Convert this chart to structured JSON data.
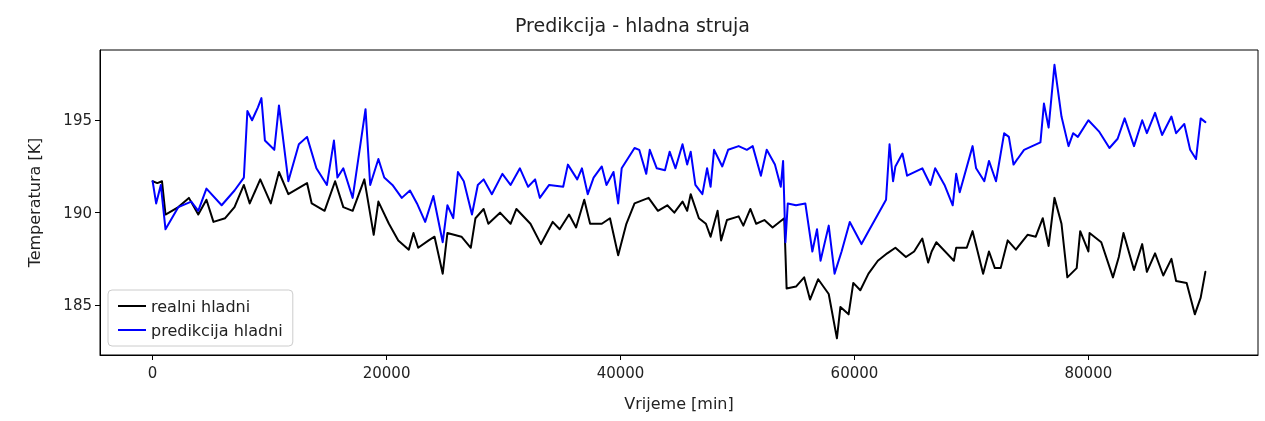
{
  "chart_data": {
    "type": "line",
    "title": "Predikcija - hladna struja",
    "xlabel": "Vrijeme [min]",
    "ylabel": "Temperatura [K]",
    "xlim": [
      -4500,
      94500
    ],
    "xticks": [
      0,
      20000,
      40000,
      60000,
      80000
    ],
    "ylim": [
      182.3,
      198.8
    ],
    "yticks": [
      185,
      190,
      195
    ],
    "grid": false,
    "legend": "bottom left",
    "marker": "none",
    "line_style": "solid",
    "series": [
      {
        "name": "realni hladni",
        "color": "#000000",
        "x": [
          0,
          400,
          800,
          1100,
          2200,
          3100,
          3900,
          4600,
          5200,
          6200,
          7000,
          7800,
          8300,
          9200,
          10100,
          10800,
          11600,
          13200,
          13600,
          14700,
          15600,
          16300,
          17100,
          18100,
          18900,
          19300,
          20200,
          21000,
          21900,
          22300,
          22700,
          23600,
          24100,
          24800,
          25200,
          26400,
          27200,
          27600,
          28300,
          28700,
          29700,
          30600,
          31100,
          32300,
          33200,
          34200,
          34800,
          35600,
          36200,
          36900,
          37400,
          38400,
          39100,
          39800,
          40500,
          41200,
          42400,
          43200,
          44000,
          44600,
          45300,
          45700,
          46000,
          46700,
          47300,
          47700,
          48300,
          48600,
          49100,
          50100,
          50500,
          51100,
          51600,
          52300,
          53000,
          54000,
          54200,
          55000,
          55700,
          56200,
          56900,
          57800,
          58500,
          58800,
          59500,
          59900,
          60500,
          61200,
          62000,
          62800,
          63500,
          64400,
          65100,
          65800,
          66300,
          66600,
          67000,
          68500,
          68700,
          69600,
          70100,
          71000,
          71500,
          72000,
          72500,
          73100,
          73800,
          74800,
          75500,
          76100,
          76600,
          77100,
          77700,
          78200,
          79000,
          79300,
          80000,
          80100,
          81100,
          82100,
          82600,
          83000,
          83900,
          84600,
          85000,
          85700,
          86400,
          87100,
          87500,
          88400,
          89100,
          89600,
          90000
        ],
        "values": [
          191.7,
          191.6,
          191.7,
          189.9,
          190.3,
          190.8,
          189.9,
          190.7,
          189.5,
          189.7,
          190.3,
          191.5,
          190.5,
          191.8,
          190.5,
          192.2,
          191.0,
          191.6,
          190.5,
          190.1,
          191.7,
          190.3,
          190.1,
          191.8,
          188.8,
          190.6,
          189.4,
          188.5,
          188.0,
          188.9,
          188.1,
          188.5,
          188.7,
          186.7,
          188.9,
          188.7,
          188.1,
          189.7,
          190.2,
          189.4,
          190.0,
          189.4,
          190.2,
          189.4,
          188.3,
          189.5,
          189.1,
          189.9,
          189.2,
          190.7,
          189.4,
          189.4,
          189.7,
          187.7,
          189.4,
          190.5,
          190.8,
          190.1,
          190.4,
          190.0,
          190.6,
          190.1,
          191.0,
          189.7,
          189.4,
          188.7,
          190.1,
          188.5,
          189.6,
          189.8,
          189.3,
          190.2,
          189.4,
          189.6,
          189.2,
          189.7,
          185.9,
          186.0,
          186.5,
          185.3,
          186.4,
          185.6,
          183.2,
          184.9,
          184.5,
          186.2,
          185.8,
          186.7,
          187.4,
          187.8,
          188.1,
          187.6,
          187.9,
          188.6,
          187.3,
          187.9,
          188.4,
          187.4,
          188.1,
          188.1,
          189.0,
          186.7,
          187.9,
          187.0,
          187.0,
          188.5,
          188.0,
          188.8,
          188.7,
          189.7,
          188.2,
          190.8,
          189.4,
          186.5,
          187.0,
          189.0,
          187.9,
          188.9,
          188.4,
          186.5,
          187.6,
          188.9,
          186.9,
          188.3,
          186.8,
          187.8,
          186.6,
          187.5,
          186.3,
          186.2,
          184.5,
          185.4,
          186.8
        ]
      },
      {
        "name": "predikcija hladni",
        "color": "#0000ff",
        "x": [
          0,
          300,
          700,
          1100,
          2200,
          3300,
          3900,
          4600,
          5900,
          7000,
          7800,
          8100,
          8500,
          9000,
          9300,
          9600,
          10400,
          10800,
          11600,
          12500,
          13200,
          14000,
          14900,
          15500,
          15800,
          16300,
          17100,
          18200,
          18600,
          19300,
          19800,
          20500,
          21300,
          22000,
          22600,
          23300,
          24000,
          24800,
          25200,
          25700,
          26100,
          26600,
          27300,
          27800,
          28300,
          29000,
          29900,
          30600,
          31400,
          32100,
          32700,
          33100,
          33900,
          35100,
          35500,
          36300,
          36700,
          37200,
          37700,
          38400,
          38800,
          39400,
          39800,
          40100,
          41200,
          41600,
          42200,
          42500,
          43100,
          43800,
          44200,
          44700,
          45300,
          45700,
          46000,
          46400,
          47000,
          47400,
          47700,
          48000,
          48700,
          49200,
          50100,
          50800,
          51300,
          52000,
          52500,
          53200,
          53700,
          53900,
          54100,
          54300,
          55000,
          55800,
          56400,
          56800,
          57100,
          57800,
          58300,
          58900,
          59600,
          60600,
          61200,
          62000,
          62700,
          63000,
          63300,
          63500,
          64100,
          64500,
          65800,
          66500,
          66900,
          67700,
          68400,
          68700,
          69000,
          70100,
          70400,
          71100,
          71500,
          72100,
          72800,
          73200,
          73600,
          74500,
          75900,
          76200,
          76600,
          77100,
          77700,
          78300,
          78700,
          79100,
          80000,
          80900,
          81800,
          82500,
          83100,
          83900,
          84600,
          85000,
          85700,
          86300,
          87100,
          87500,
          88200,
          88700,
          89200,
          89600,
          90000
        ],
        "values": [
          191.7,
          190.5,
          191.5,
          189.1,
          190.3,
          190.6,
          190.1,
          191.3,
          190.4,
          191.2,
          191.9,
          195.5,
          195.0,
          195.7,
          196.2,
          193.9,
          193.4,
          195.8,
          191.7,
          193.7,
          194.1,
          192.4,
          191.5,
          193.9,
          191.9,
          192.4,
          190.8,
          195.6,
          191.5,
          192.9,
          191.9,
          191.5,
          190.8,
          191.2,
          190.5,
          189.5,
          190.9,
          188.4,
          190.4,
          189.7,
          192.2,
          191.7,
          189.9,
          191.5,
          191.8,
          191.0,
          192.1,
          191.5,
          192.4,
          191.4,
          191.8,
          190.8,
          191.5,
          191.4,
          192.6,
          191.8,
          192.4,
          191.0,
          191.9,
          192.5,
          191.5,
          192.2,
          190.5,
          192.4,
          193.5,
          193.4,
          192.1,
          193.4,
          192.4,
          192.3,
          193.3,
          192.4,
          193.7,
          192.6,
          193.3,
          191.5,
          191.0,
          192.4,
          191.4,
          193.4,
          192.5,
          193.4,
          193.6,
          193.4,
          193.6,
          192.0,
          193.4,
          192.6,
          191.4,
          192.8,
          188.4,
          190.5,
          190.4,
          190.5,
          187.9,
          189.1,
          187.4,
          189.3,
          186.7,
          187.9,
          189.5,
          188.3,
          189.0,
          189.9,
          190.7,
          193.7,
          191.7,
          192.5,
          193.2,
          192.0,
          192.4,
          191.5,
          192.4,
          191.5,
          190.4,
          192.1,
          191.1,
          193.6,
          192.4,
          191.7,
          192.8,
          191.7,
          194.3,
          194.1,
          192.6,
          193.4,
          193.8,
          195.9,
          194.6,
          198.0,
          195.2,
          193.6,
          194.3,
          194.1,
          195.0,
          194.4,
          193.5,
          194.0,
          195.1,
          193.6,
          195.0,
          194.3,
          195.4,
          194.2,
          195.2,
          194.3,
          194.8,
          193.4,
          192.9,
          195.1,
          194.9
        ]
      }
    ]
  }
}
